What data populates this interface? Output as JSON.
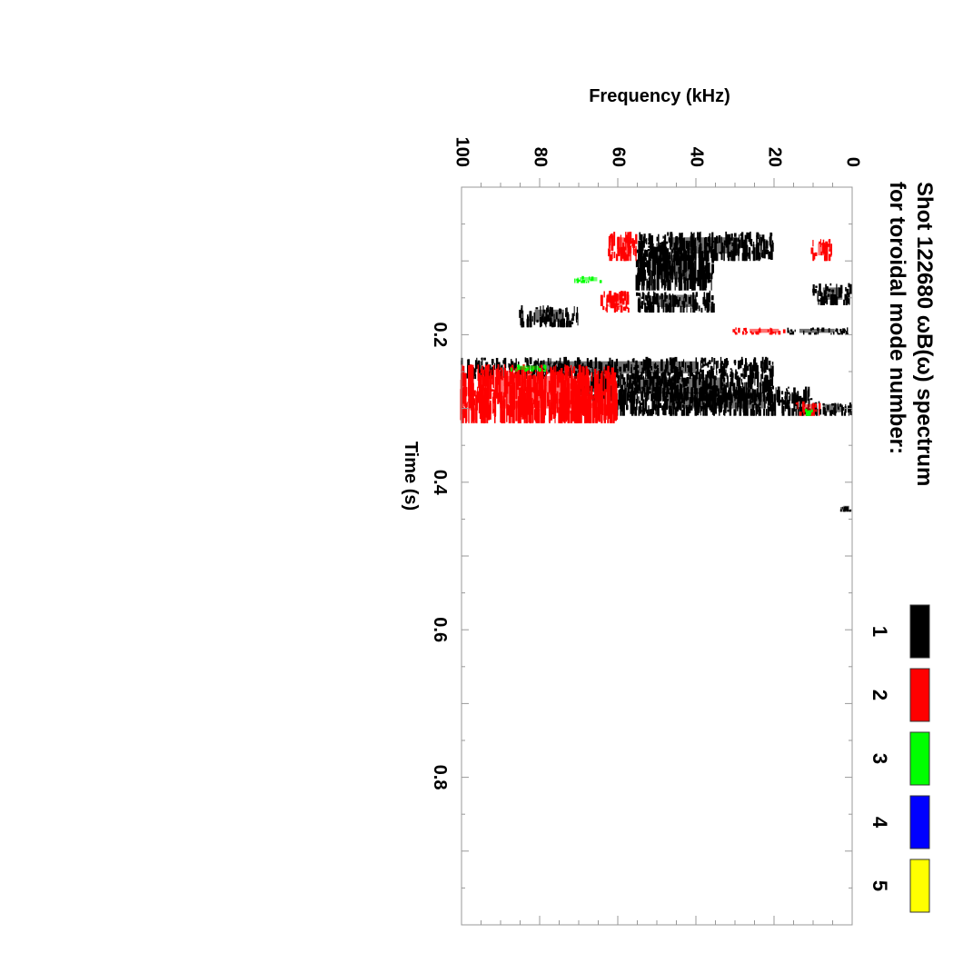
{
  "chart_data": {
    "type": "heatmap",
    "title_line1": "Shot 122680 ωB(ω) spectrum",
    "title_line2": "for toroidal mode number:",
    "xlabel": "Time (s)",
    "ylabel": "Frequency (kHz)",
    "orientation": "rotated 90 degrees clockwise",
    "xlim": [
      0.0,
      1.0
    ],
    "ylim": [
      0,
      100
    ],
    "x_ticks": [
      "0.2",
      "0.4",
      "0.6",
      "0.8"
    ],
    "x_tick_values": [
      0.2,
      0.4,
      0.6,
      0.8
    ],
    "y_ticks": [
      "0",
      "20",
      "40",
      "60",
      "80",
      "100"
    ],
    "y_tick_values": [
      0,
      20,
      40,
      60,
      80,
      100
    ],
    "legend": [
      {
        "label": "1",
        "color": "#000000"
      },
      {
        "label": "2",
        "color": "#ff0000"
      },
      {
        "label": "3",
        "color": "#00ff00"
      },
      {
        "label": "4",
        "color": "#0000ff"
      },
      {
        "label": "5",
        "color": "#ffff00"
      }
    ],
    "series": [
      {
        "name": "1",
        "color": "#000000",
        "regions": [
          {
            "t": [
              0.06,
              0.1
            ],
            "f": [
              20,
              55
            ]
          },
          {
            "t": [
              0.08,
              0.14
            ],
            "f": [
              35,
              55
            ]
          },
          {
            "t": [
              0.13,
              0.16
            ],
            "f": [
              0,
              10
            ]
          },
          {
            "t": [
              0.14,
              0.17
            ],
            "f": [
              35,
              55
            ]
          },
          {
            "t": [
              0.16,
              0.19
            ],
            "f": [
              70,
              85
            ]
          },
          {
            "t": [
              0.19,
              0.2
            ],
            "f": [
              0,
              18
            ]
          },
          {
            "t": [
              0.23,
              0.26
            ],
            "f": [
              20,
              100
            ]
          },
          {
            "t": [
              0.25,
              0.29
            ],
            "f": [
              20,
              70
            ]
          },
          {
            "t": [
              0.29,
              0.31
            ],
            "f": [
              0,
              10
            ]
          },
          {
            "t": [
              0.27,
              0.31
            ],
            "f": [
              10,
              60
            ]
          },
          {
            "t": [
              0.43,
              0.44
            ],
            "f": [
              0,
              3
            ]
          }
        ]
      },
      {
        "name": "2",
        "color": "#ff0000",
        "regions": [
          {
            "t": [
              0.07,
              0.1
            ],
            "f": [
              5,
              10
            ]
          },
          {
            "t": [
              0.06,
              0.1
            ],
            "f": [
              55,
              62
            ]
          },
          {
            "t": [
              0.14,
              0.17
            ],
            "f": [
              57,
              64
            ]
          },
          {
            "t": [
              0.19,
              0.2
            ],
            "f": [
              15,
              30
            ]
          },
          {
            "t": [
              0.24,
              0.32
            ],
            "f": [
              60,
              100
            ]
          },
          {
            "t": [
              0.29,
              0.31
            ],
            "f": [
              8,
              14
            ]
          }
        ]
      },
      {
        "name": "3",
        "color": "#00ff00",
        "regions": [
          {
            "t": [
              0.12,
              0.13
            ],
            "f": [
              63,
              72
            ]
          },
          {
            "t": [
              0.24,
              0.25
            ],
            "f": [
              78,
              88
            ]
          },
          {
            "t": [
              0.3,
              0.31
            ],
            "f": [
              10,
              12
            ]
          }
        ]
      }
    ]
  }
}
